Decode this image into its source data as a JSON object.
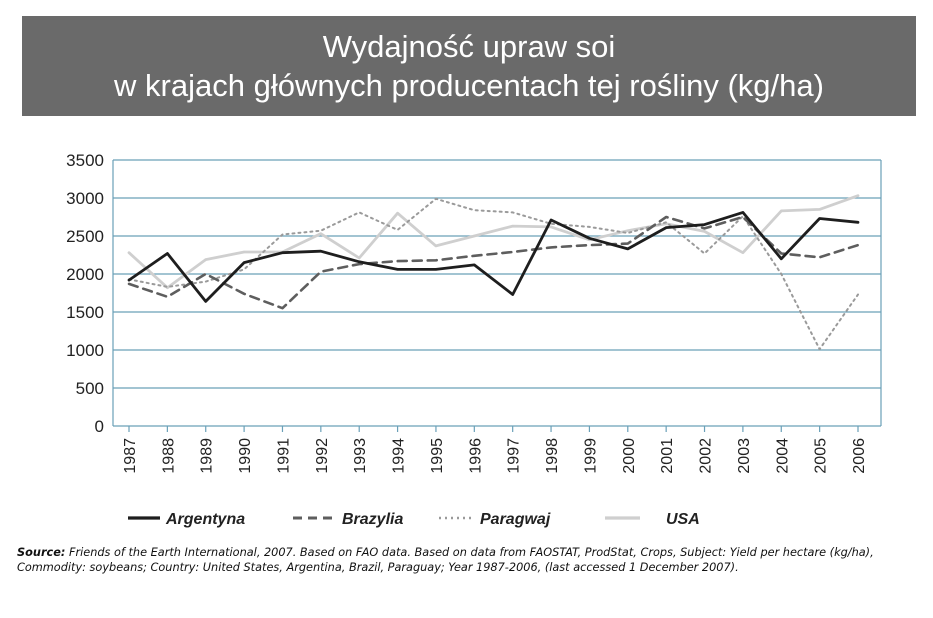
{
  "title": {
    "line1": "Wydajność upraw soi",
    "line2": "w krajach głównych producentach tej rośliny (kg/ha)"
  },
  "source": {
    "label": "Source:",
    "text": "Friends of the Earth International, 2007. Based on FAO data. Based on data from FAOSTAT, ProdStat, Crops, Subject: Yield per hectare (kg/ha), Commodity: soybeans; Country: United States, Argentina, Brazil, Paraguay; Year 1987-2006, (last accessed 1 December 2007)."
  },
  "chart_data": {
    "type": "line",
    "x": [
      "1987",
      "1988",
      "1989",
      "1990",
      "1991",
      "1992",
      "1993",
      "1994",
      "1995",
      "1996",
      "1997",
      "1998",
      "1999",
      "2000",
      "2001",
      "2002",
      "2003",
      "2004",
      "2005",
      "2006"
    ],
    "yticks": [
      0,
      500,
      1000,
      1500,
      2000,
      2500,
      3000,
      3500
    ],
    "ylim": [
      0,
      3500
    ],
    "grid": true,
    "legend_placement": "bottom",
    "series": [
      {
        "name": "Argentyna",
        "color": "#1e1e1e",
        "style": "solid",
        "values": [
          1920,
          2270,
          1640,
          2150,
          2280,
          2300,
          2160,
          2060,
          2060,
          2120,
          1730,
          2710,
          2470,
          2330,
          2610,
          2650,
          2810,
          2200,
          2730,
          2680
        ]
      },
      {
        "name": "Brazylia",
        "color": "#5e5e5e",
        "style": "dashed",
        "values": [
          1870,
          1700,
          2000,
          1740,
          1550,
          2030,
          2130,
          2170,
          2180,
          2240,
          2290,
          2350,
          2380,
          2400,
          2750,
          2600,
          2750,
          2270,
          2220,
          2380
        ]
      },
      {
        "name": "Paragwaj",
        "color": "#9a9a9a",
        "style": "dotted",
        "values": [
          1930,
          1830,
          1900,
          2060,
          2520,
          2570,
          2810,
          2580,
          2990,
          2840,
          2810,
          2660,
          2620,
          2540,
          2680,
          2270,
          2760,
          2000,
          1010,
          1730
        ]
      },
      {
        "name": "USA",
        "color": "#cfcfcf",
        "style": "solid",
        "values": [
          2280,
          1820,
          2190,
          2290,
          2290,
          2530,
          2210,
          2800,
          2370,
          2500,
          2630,
          2620,
          2450,
          2570,
          2660,
          2560,
          2280,
          2830,
          2850,
          3030
        ]
      }
    ]
  }
}
